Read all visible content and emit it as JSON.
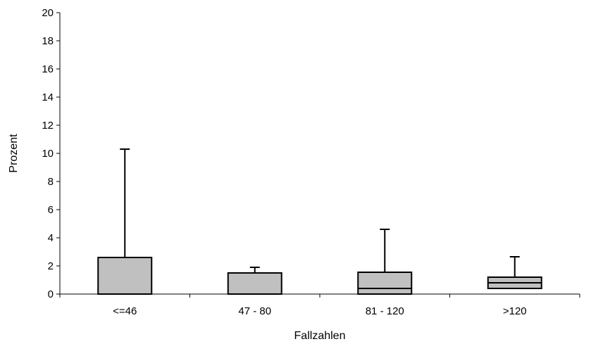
{
  "chart_data": {
    "type": "boxplot",
    "title": "",
    "xlabel": "Fallzahlen",
    "ylabel": "Prozent",
    "ylim": [
      0,
      20
    ],
    "yticks": [
      0,
      2,
      4,
      6,
      8,
      10,
      12,
      14,
      16,
      18,
      20
    ],
    "grid": false,
    "legend": "none",
    "box_color": "#c0c0c0",
    "categories": [
      "<=46",
      "47 - 80",
      "81 - 120",
      ">120"
    ],
    "boxes": [
      {
        "category": "<=46",
        "min": 0,
        "q1": 0,
        "median": 0,
        "q3": 2.6,
        "max": 10.3
      },
      {
        "category": "47 - 80",
        "min": 0,
        "q1": 0,
        "median": 0,
        "q3": 1.5,
        "max": 1.9
      },
      {
        "category": "81 - 120",
        "min": 0,
        "q1": 0,
        "median": 0.4,
        "q3": 1.55,
        "max": 4.6
      },
      {
        "category": ">120",
        "min": 0,
        "q1": 0.4,
        "median": 0.8,
        "q3": 1.2,
        "max": 2.65
      }
    ]
  }
}
